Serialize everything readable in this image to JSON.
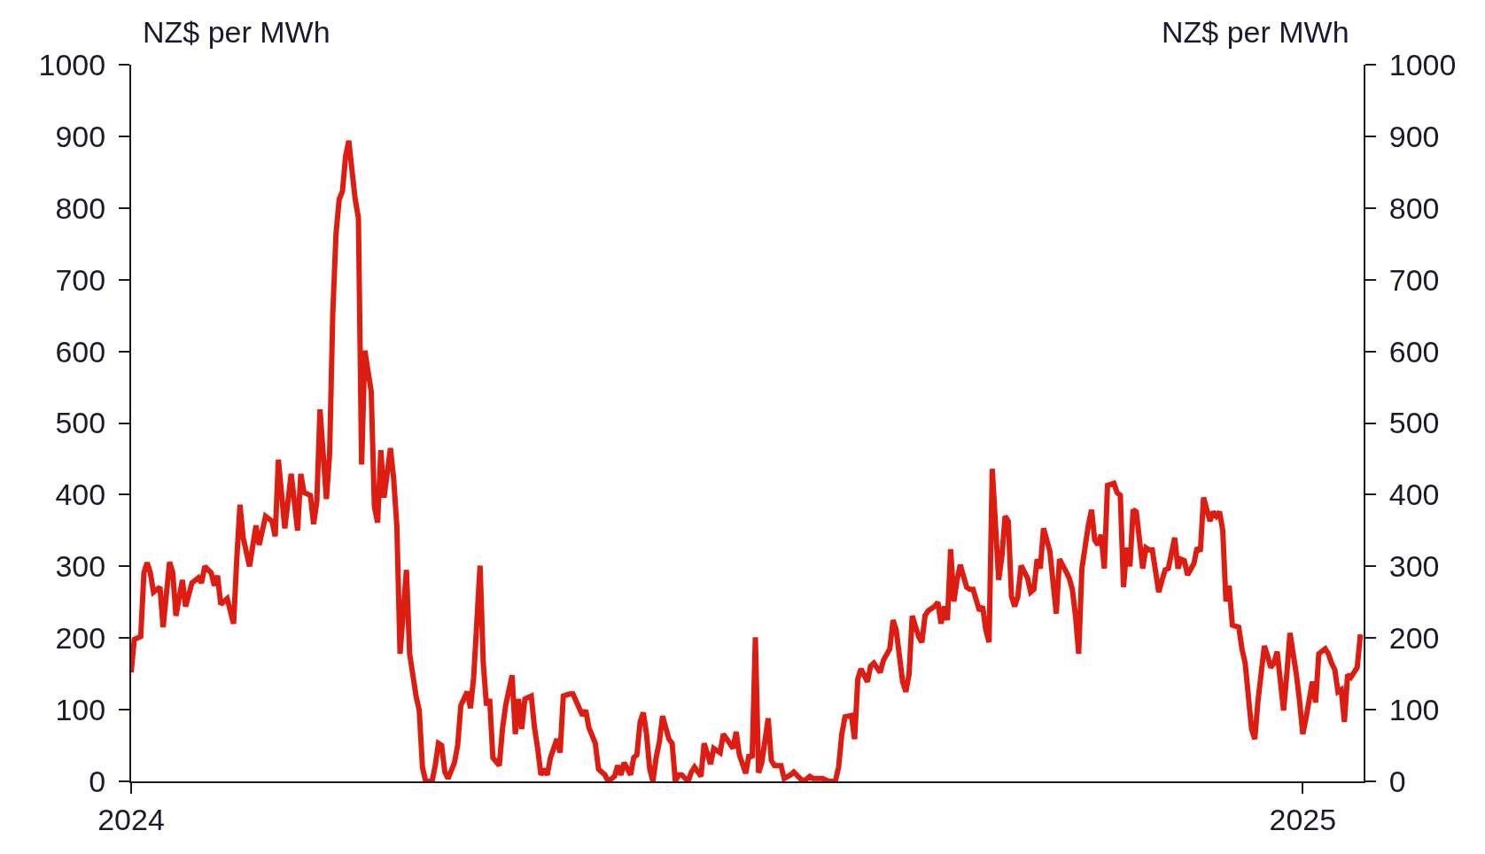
{
  "chart_data": {
    "type": "line",
    "ylabel": "NZ$ per MWh",
    "y2label": "NZ$ per MWh",
    "color": "#dd1c12",
    "line_style": "solid",
    "marker": "none",
    "xlim": [
      "2024-01-01",
      "2025-01-20"
    ],
    "xticks": [
      "2024",
      "2025"
    ],
    "ylim": [
      0,
      1000
    ],
    "yticks": [
      0,
      100,
      200,
      300,
      400,
      500,
      600,
      700,
      800,
      900,
      1000
    ],
    "y2lim": [
      0,
      1000
    ],
    "y2ticks": [
      0,
      100,
      200,
      300,
      400,
      500,
      600,
      700,
      800,
      900,
      1000
    ],
    "x": [
      "2024-01-01",
      "2024-01-02",
      "2024-01-04",
      "2024-01-05",
      "2024-01-06",
      "2024-01-07",
      "2024-01-08",
      "2024-01-10",
      "2024-01-11",
      "2024-01-13",
      "2024-01-14",
      "2024-01-15",
      "2024-01-17",
      "2024-01-18",
      "2024-01-20",
      "2024-01-22",
      "2024-01-23",
      "2024-01-24",
      "2024-01-26",
      "2024-01-27",
      "2024-01-28",
      "2024-01-29",
      "2024-01-31",
      "2024-02-02",
      "2024-02-03",
      "2024-02-04",
      "2024-02-05",
      "2024-02-07",
      "2024-02-09",
      "2024-02-10",
      "2024-02-12",
      "2024-02-14",
      "2024-02-15",
      "2024-02-16",
      "2024-02-18",
      "2024-02-20",
      "2024-02-22",
      "2024-02-23",
      "2024-02-24",
      "2024-02-26",
      "2024-02-27",
      "2024-02-28",
      "2024-02-29",
      "2024-03-02",
      "2024-03-03",
      "2024-03-04",
      "2024-03-05",
      "2024-03-06",
      "2024-03-07",
      "2024-03-08",
      "2024-03-09",
      "2024-03-10",
      "2024-03-11",
      "2024-03-12",
      "2024-03-13",
      "2024-03-14",
      "2024-03-16",
      "2024-03-17",
      "2024-03-18",
      "2024-03-19",
      "2024-03-20",
      "2024-03-22",
      "2024-03-23",
      "2024-03-24",
      "2024-03-25",
      "2024-03-27",
      "2024-03-28",
      "2024-03-30",
      "2024-03-31",
      "2024-04-01",
      "2024-04-02",
      "2024-04-04",
      "2024-04-05",
      "2024-04-06",
      "2024-04-07",
      "2024-04-08",
      "2024-04-09",
      "2024-04-11",
      "2024-04-12",
      "2024-04-13",
      "2024-04-15",
      "2024-04-16",
      "2024-04-17",
      "2024-04-19",
      "2024-04-20",
      "2024-04-21",
      "2024-04-22",
      "2024-04-23",
      "2024-04-25",
      "2024-04-26",
      "2024-04-27",
      "2024-04-29",
      "2024-04-30",
      "2024-05-01",
      "2024-05-02",
      "2024-05-03",
      "2024-05-05",
      "2024-05-06",
      "2024-05-07",
      "2024-05-08",
      "2024-05-09",
      "2024-05-10",
      "2024-05-11",
      "2024-05-13",
      "2024-05-14",
      "2024-05-15",
      "2024-05-17",
      "2024-05-18",
      "2024-05-20",
      "2024-05-21",
      "2024-05-22",
      "2024-05-23",
      "2024-05-25",
      "2024-05-26",
      "2024-05-28",
      "2024-05-29",
      "2024-05-31",
      "2024-06-01",
      "2024-06-02",
      "2024-06-03",
      "2024-06-05",
      "2024-06-06",
      "2024-06-07",
      "2024-06-08",
      "2024-06-09",
      "2024-06-10",
      "2024-06-11",
      "2024-06-12",
      "2024-06-13",
      "2024-06-14",
      "2024-06-15",
      "2024-06-17",
      "2024-06-18",
      "2024-06-19",
      "2024-06-20",
      "2024-06-21",
      "2024-06-23",
      "2024-06-24",
      "2024-06-25",
      "2024-06-27",
      "2024-06-28",
      "2024-06-30",
      "2024-07-01",
      "2024-07-03",
      "2024-07-04",
      "2024-07-06",
      "2024-07-07",
      "2024-07-08",
      "2024-07-09",
      "2024-07-11",
      "2024-07-12",
      "2024-07-13",
      "2024-07-14",
      "2024-07-15",
      "2024-07-16",
      "2024-07-18",
      "2024-07-19",
      "2024-07-20",
      "2024-07-22",
      "2024-07-23",
      "2024-07-25",
      "2024-07-26",
      "2024-07-28",
      "2024-07-29",
      "2024-07-31",
      "2024-08-01",
      "2024-08-04",
      "2024-08-06",
      "2024-08-08",
      "2024-08-09",
      "2024-08-10",
      "2024-08-11",
      "2024-08-13",
      "2024-08-14",
      "2024-08-15",
      "2024-08-16",
      "2024-08-18",
      "2024-08-19",
      "2024-08-20",
      "2024-08-22",
      "2024-08-23",
      "2024-08-25",
      "2024-08-26",
      "2024-08-27",
      "2024-08-29",
      "2024-08-30",
      "2024-08-31",
      "2024-09-01",
      "2024-09-03",
      "2024-09-04",
      "2024-09-05",
      "2024-09-06",
      "2024-09-08",
      "2024-09-09",
      "2024-09-10",
      "2024-09-11",
      "2024-09-12",
      "2024-09-13",
      "2024-09-14",
      "2024-09-15",
      "2024-09-16",
      "2024-09-18",
      "2024-09-19",
      "2024-09-20",
      "2024-09-22",
      "2024-09-23",
      "2024-09-24",
      "2024-09-25",
      "2024-09-26",
      "2024-09-28",
      "2024-09-29",
      "2024-09-30",
      "2024-10-01",
      "2024-10-02",
      "2024-10-03",
      "2024-10-04",
      "2024-10-05",
      "2024-10-07",
      "2024-10-08",
      "2024-10-09",
      "2024-10-10",
      "2024-10-11",
      "2024-10-12",
      "2024-10-14",
      "2024-10-15",
      "2024-10-16",
      "2024-10-17",
      "2024-10-19",
      "2024-10-20",
      "2024-10-21",
      "2024-10-22",
      "2024-10-23",
      "2024-10-24",
      "2024-10-26",
      "2024-10-27",
      "2024-10-28",
      "2024-10-29",
      "2024-10-30",
      "2024-10-31",
      "2024-11-01",
      "2024-11-03",
      "2024-11-04",
      "2024-11-05",
      "2024-11-06",
      "2024-11-07",
      "2024-11-08",
      "2024-11-09",
      "2024-11-10",
      "2024-11-12",
      "2024-11-13",
      "2024-11-14",
      "2024-11-15",
      "2024-11-17",
      "2024-11-18",
      "2024-11-19",
      "2024-11-20",
      "2024-11-22",
      "2024-11-23",
      "2024-11-24",
      "2024-11-25",
      "2024-11-26",
      "2024-11-28",
      "2024-11-29",
      "2024-11-30",
      "2024-12-01",
      "2024-12-03",
      "2024-12-04",
      "2024-12-05",
      "2024-12-06",
      "2024-12-07",
      "2024-12-08",
      "2024-12-09",
      "2024-12-10",
      "2024-12-12",
      "2024-12-13",
      "2024-12-14",
      "2024-12-16",
      "2024-12-17",
      "2024-12-18",
      "2024-12-20",
      "2024-12-21",
      "2024-12-22",
      "2024-12-23",
      "2024-12-24",
      "2024-12-26",
      "2024-12-27",
      "2024-12-28",
      "2024-12-30",
      "2024-12-31",
      "2025-01-01",
      "2025-01-02",
      "2025-01-04",
      "2025-01-05",
      "2025-01-06",
      "2025-01-08",
      "2025-01-09",
      "2025-01-10",
      "2025-01-11",
      "2025-01-12",
      "2025-01-13",
      "2025-01-14",
      "2025-01-15",
      "2025-01-16",
      "2025-01-18",
      "2025-01-19"
    ],
    "values": [
      152,
      198,
      202,
      291,
      305,
      291,
      264,
      271,
      215,
      306,
      291,
      231,
      281,
      244,
      277,
      284,
      277,
      300,
      291,
      273,
      287,
      247,
      255,
      220,
      310,
      386,
      340,
      300,
      357,
      330,
      370,
      363,
      342,
      449,
      353,
      429,
      350,
      429,
      403,
      399,
      359,
      390,
      519,
      394,
      457,
      654,
      764,
      812,
      823,
      872,
      894,
      852,
      812,
      786,
      442,
      601,
      544,
      383,
      361,
      462,
      396,
      465,
      423,
      357,
      178,
      295,
      178,
      119,
      99,
      20,
      0,
      0,
      22,
      53,
      50,
      13,
      4,
      26,
      50,
      106,
      125,
      102,
      145,
      301,
      165,
      106,
      115,
      33,
      22,
      73,
      106,
      148,
      66,
      115,
      73,
      115,
      119,
      75,
      46,
      9,
      17,
      9,
      33,
      59,
      40,
      119,
      122,
      122,
      102,
      92,
      99,
      75,
      53,
      17,
      9,
      0,
      7,
      22,
      9,
      26,
      9,
      33,
      37,
      83,
      96,
      66,
      17,
      0,
      33,
      55,
      91,
      59,
      53,
      0,
      9,
      9,
      0,
      13,
      20,
      7,
      53,
      24,
      46,
      40,
      66,
      53,
      46,
      69,
      37,
      11,
      37,
      33,
      201,
      12,
      26,
      88,
      29,
      22,
      22,
      4,
      9,
      13,
      4,
      0,
      7,
      4,
      4,
      0,
      0,
      20,
      66,
      90,
      92,
      59,
      143,
      157,
      139,
      161,
      165,
      152,
      169,
      185,
      225,
      211,
      139,
      125,
      149,
      231,
      202,
      194,
      231,
      238,
      244,
      250,
      220,
      244,
      225,
      324,
      251,
      281,
      302,
      271,
      268,
      268,
      238,
      244,
      211,
      194,
      436,
      281,
      313,
      370,
      363,
      258,
      244,
      258,
      301,
      284,
      264,
      268,
      310,
      297,
      353,
      321,
      277,
      234,
      310,
      293,
      284,
      268,
      231,
      178,
      297,
      357,
      379,
      337,
      330,
      344,
      297,
      413,
      416,
      403,
      399,
      271,
      326,
      300,
      379,
      376,
      297,
      326,
      323,
      323,
      264,
      280,
      295,
      297,
      340,
      297,
      310,
      308,
      288,
      304,
      326,
      321,
      396,
      363,
      376,
      370,
      376,
      350,
      251,
      273,
      218,
      215,
      185,
      165,
      73,
      59,
      112,
      189,
      175,
      159,
      165,
      181,
      99,
      149,
      207,
      149,
      112,
      66,
      88,
      139,
      110,
      178,
      185,
      178,
      165,
      156,
      125,
      128,
      83,
      149,
      145,
      159,
      205
    ]
  }
}
